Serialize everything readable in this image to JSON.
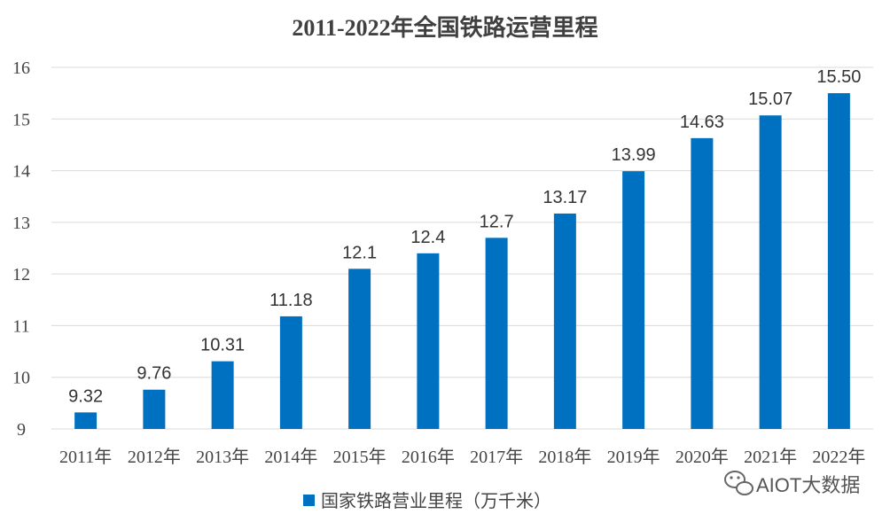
{
  "chart_data": {
    "type": "bar",
    "title": "2011-2022年全国铁路运营里程",
    "categories": [
      "2011年",
      "2012年",
      "2013年",
      "2014年",
      "2015年",
      "2016年",
      "2017年",
      "2018年",
      "2019年",
      "2020年",
      "2021年",
      "2022年"
    ],
    "series": [
      {
        "name": "国家铁路营业里程（万千米）",
        "values": [
          9.32,
          9.76,
          10.31,
          11.18,
          12.1,
          12.4,
          12.7,
          13.17,
          13.99,
          14.63,
          15.07,
          15.5
        ],
        "labels": [
          "9.32",
          "9.76",
          "10.31",
          "11.18",
          "12.1",
          "12.4",
          "12.7",
          "13.17",
          "13.99",
          "14.63",
          "15.07",
          "15.50"
        ]
      }
    ],
    "ylim": [
      9,
      16
    ],
    "yticks": [
      9,
      10,
      11,
      12,
      13,
      14,
      15,
      16
    ],
    "grid": true,
    "legend_position": "bottom",
    "bar_color": "#0070C0",
    "grid_color": "#D9D9D9"
  },
  "watermark": {
    "icon": "wechat-icon",
    "text": "AIOT大数据"
  }
}
